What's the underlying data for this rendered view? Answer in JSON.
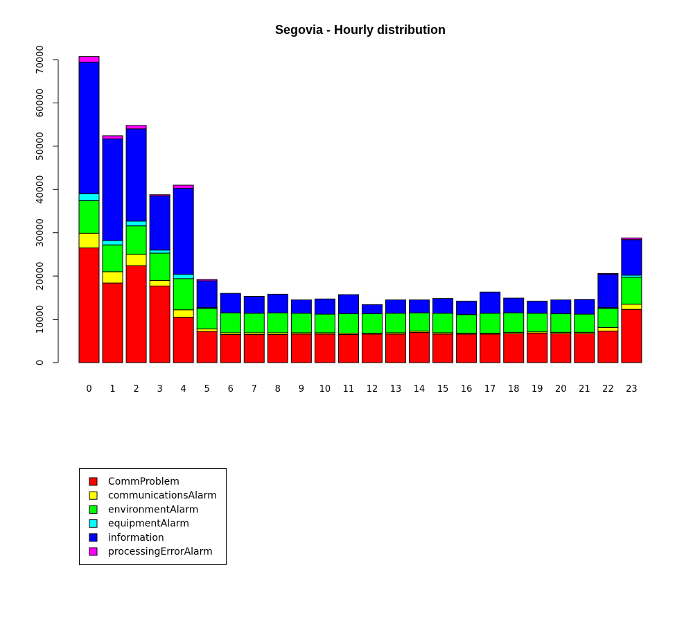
{
  "chart_data": {
    "type": "bar",
    "stacked": true,
    "title": "Segovia - Hourly distribution",
    "xlabel": "",
    "ylabel": "",
    "categories": [
      "0",
      "1",
      "2",
      "3",
      "4",
      "5",
      "6",
      "7",
      "8",
      "9",
      "10",
      "11",
      "12",
      "13",
      "14",
      "15",
      "16",
      "17",
      "18",
      "19",
      "20",
      "21",
      "22",
      "23"
    ],
    "ylim": [
      0,
      72000
    ],
    "yticks": [
      0,
      10000,
      20000,
      30000,
      40000,
      50000,
      60000,
      70000
    ],
    "ytick_labels": [
      "0",
      "10000",
      "20000",
      "30000",
      "40000",
      "50000",
      "60000",
      "70000"
    ],
    "grid": false,
    "legend_position": "bottom-left",
    "series": [
      {
        "name": "CommProblem",
        "color": "#ff0000",
        "values": [
          26500,
          18400,
          22400,
          17700,
          10500,
          7200,
          6500,
          6500,
          6500,
          6600,
          6600,
          6500,
          6600,
          6600,
          7000,
          6600,
          6600,
          6600,
          6700,
          6800,
          6700,
          6700,
          7300,
          12300
        ]
      },
      {
        "name": "communicationsAlarm",
        "color": "#ffff00",
        "values": [
          3400,
          2600,
          2600,
          1300,
          1700,
          600,
          400,
          400,
          400,
          300,
          300,
          300,
          200,
          300,
          300,
          300,
          200,
          200,
          300,
          300,
          300,
          300,
          800,
          1200
        ]
      },
      {
        "name": "environmentAlarm",
        "color": "#00ff00",
        "values": [
          7500,
          6200,
          6600,
          6300,
          7200,
          4700,
          4600,
          4500,
          4600,
          4500,
          4300,
          4500,
          4500,
          4500,
          4200,
          4500,
          4300,
          4600,
          4500,
          4300,
          4300,
          4200,
          4400,
          6200
        ]
      },
      {
        "name": "equipmentAlarm",
        "color": "#00ffff",
        "values": [
          1600,
          1000,
          1100,
          700,
          1000,
          200,
          0,
          0,
          0,
          0,
          0,
          0,
          0,
          0,
          0,
          0,
          0,
          0,
          0,
          0,
          0,
          0,
          200,
          500
        ]
      },
      {
        "name": "information",
        "color": "#0000ff",
        "values": [
          30400,
          23500,
          21300,
          12500,
          19900,
          6200,
          4500,
          3900,
          4300,
          3100,
          3500,
          4400,
          2100,
          3100,
          3000,
          3400,
          3100,
          4900,
          3400,
          2800,
          3200,
          3400,
          7700,
          8200
        ]
      },
      {
        "name": "processingErrorAlarm",
        "color": "#ff00ff",
        "values": [
          1300,
          700,
          800,
          300,
          700,
          300,
          0,
          0,
          0,
          0,
          0,
          0,
          0,
          0,
          0,
          0,
          0,
          0,
          0,
          0,
          0,
          0,
          200,
          400
        ]
      }
    ]
  }
}
